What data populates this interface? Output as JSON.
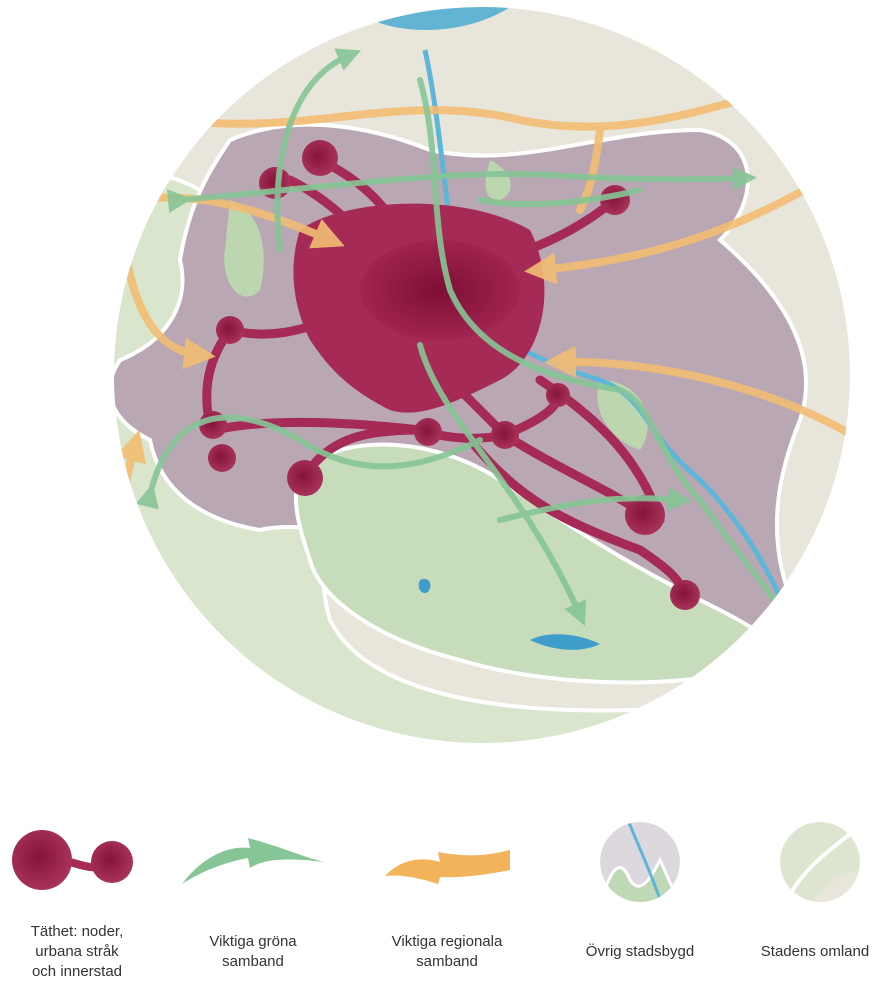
{
  "legend": {
    "items": [
      {
        "lines": [
          "Täthet: noder,",
          "urbana stråk",
          "och innerstad"
        ]
      },
      {
        "lines": [
          "Viktiga gröna",
          "samband"
        ]
      },
      {
        "lines": [
          "Viktiga regionala",
          "samband"
        ]
      },
      {
        "lines": [
          "Övrig stadsbygd"
        ]
      },
      {
        "lines": [
          "Stadens omland"
        ]
      }
    ]
  }
}
